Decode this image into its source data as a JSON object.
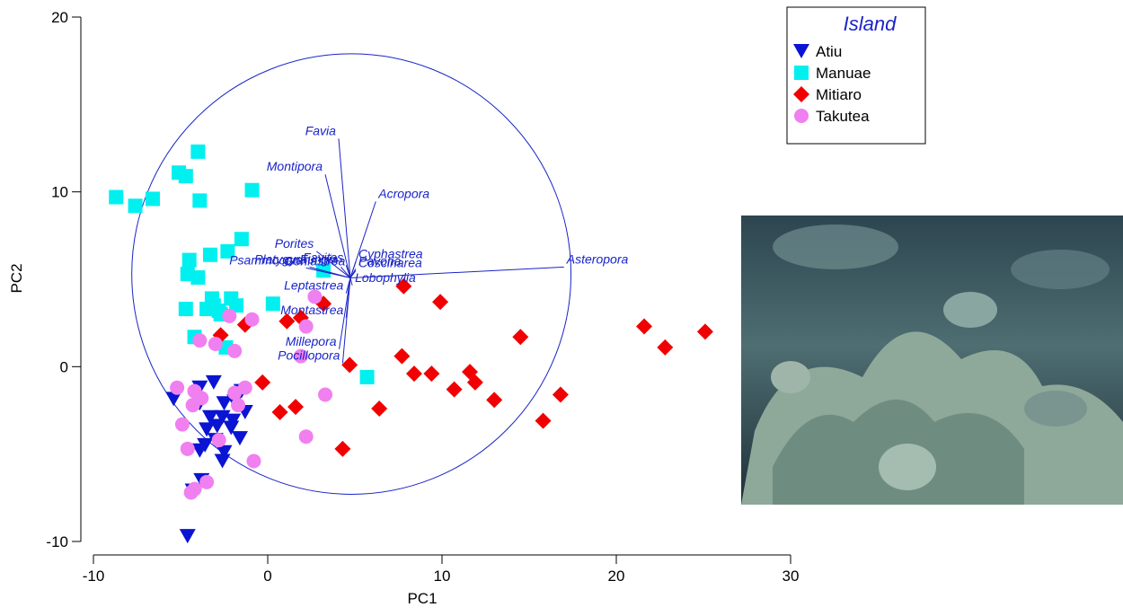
{
  "chart_data": {
    "type": "scatter",
    "x_label": "PC1",
    "y_label": "PC2",
    "xlim": [
      -10,
      30
    ],
    "ylim": [
      -10,
      20
    ],
    "xticks": [
      -10,
      0,
      10,
      20,
      30
    ],
    "yticks": [
      -10,
      0,
      10,
      20
    ],
    "legend_title": "Island",
    "legend_position": "upper right",
    "series": [
      {
        "name": "Atiu",
        "color": "#0a14d2",
        "marker": "triangle-down",
        "x": [
          -5.4,
          -3.9,
          -3.1,
          -1.5,
          -3.9,
          -3.3,
          -2.6,
          -2.0,
          -1.3,
          -3.5,
          -2.9,
          -2.1,
          -1.6,
          -3.6,
          -3.0,
          -2.5,
          -3.9,
          -2.6,
          -3.8,
          -4.3,
          -4.6,
          -2.5,
          -1.9
        ],
        "y": [
          -1.85,
          -1.2,
          -0.9,
          -1.4,
          -2.1,
          -2.9,
          -2.9,
          -3.1,
          -2.6,
          -3.6,
          -3.4,
          -3.5,
          -4.1,
          -4.5,
          -4.2,
          -4.9,
          -4.8,
          -5.4,
          -6.5,
          -7.1,
          -9.7,
          -2.1,
          -2.0
        ]
      },
      {
        "name": "Manuae",
        "color": "#00f0f0",
        "marker": "square",
        "x": [
          -8.7,
          -7.6,
          -6.6,
          -5.1,
          -4.7,
          -4.0,
          -3.9,
          -0.9,
          -1.5,
          -2.3,
          -3.3,
          -4.5,
          -4.6,
          -4.0,
          -3.2,
          -3.5,
          -2.8,
          -3.1,
          -2.7,
          -2.1,
          -1.8,
          -4.7,
          -4.2,
          -2.4,
          0.3,
          3.2,
          5.7
        ],
        "y": [
          9.7,
          9.2,
          9.6,
          11.1,
          10.9,
          12.3,
          9.5,
          10.1,
          7.3,
          6.6,
          6.4,
          6.1,
          5.3,
          5.1,
          3.9,
          3.3,
          3.2,
          3.5,
          3.0,
          3.9,
          3.5,
          3.3,
          1.7,
          1.1,
          3.6,
          5.5,
          -0.6
        ]
      },
      {
        "name": "Mitiaro",
        "color": "#f00000",
        "marker": "diamond",
        "x": [
          7.8,
          9.9,
          3.2,
          1.1,
          -1.3,
          -2.7,
          7.7,
          8.4,
          9.4,
          4.7,
          -0.3,
          1.6,
          0.7,
          6.4,
          4.3,
          10.7,
          11.6,
          11.9,
          13.0,
          14.5,
          15.8,
          16.8,
          21.6,
          22.8,
          25.1,
          1.9
        ],
        "y": [
          4.6,
          3.7,
          3.6,
          2.6,
          2.4,
          1.8,
          0.6,
          -0.4,
          -0.4,
          0.1,
          -0.9,
          -2.3,
          -2.6,
          -2.4,
          -4.7,
          -1.3,
          -0.3,
          -0.9,
          -1.9,
          1.7,
          -3.1,
          -1.6,
          2.3,
          1.1,
          2.0,
          2.8
        ]
      },
      {
        "name": "Takutea",
        "color": "#f080f0",
        "marker": "circle",
        "x": [
          2.7,
          -2.2,
          -0.9,
          2.2,
          -3.9,
          -3.0,
          -1.9,
          -5.2,
          -4.2,
          -1.3,
          -4.3,
          -1.9,
          -1.7,
          -3.8,
          3.3,
          -4.9,
          -2.8,
          2.2,
          -4.6,
          -0.8,
          -3.5,
          -4.4,
          -4.2,
          1.9
        ],
        "y": [
          4.0,
          2.9,
          2.7,
          2.3,
          1.5,
          1.3,
          0.9,
          -1.2,
          -1.4,
          -1.2,
          -2.2,
          -1.5,
          -2.2,
          -1.8,
          -1.6,
          -3.3,
          -4.2,
          -4.0,
          -4.7,
          -5.4,
          -6.6,
          -7.2,
          -7.0,
          0.6
        ]
      }
    ],
    "circle": {
      "x": 4.8,
      "y": 5.3,
      "radius": 12.6,
      "color": "#1a24c8"
    },
    "vectors": {
      "color": "#1a24c8",
      "origin": [
        4.74,
        5.08
      ],
      "names": [
        "Favia",
        "Montipora",
        "Acropora",
        "Asteropora",
        "Porites",
        "Platygyra",
        "Psammocora",
        "Favites",
        "Goniastrea",
        "Fungia",
        "Cyphastrea",
        "Pavona",
        "Coscinarea",
        "Lobophylia",
        "Leptastrea",
        "Montastrea",
        "Millepora",
        "Pocillopora"
      ],
      "x": [
        4.07,
        3.3,
        6.2,
        17.0,
        2.8,
        2.4,
        2.2,
        4.5,
        4.6,
        4.2,
        5.05,
        5.05,
        5.05,
        4.85,
        4.5,
        4.5,
        4.1,
        4.3
      ],
      "y": [
        13.05,
        11.0,
        9.45,
        5.7,
        6.6,
        5.7,
        5.65,
        5.8,
        5.6,
        5.7,
        6.0,
        5.6,
        5.5,
        4.65,
        4.2,
        2.8,
        1.0,
        0.2
      ]
    }
  }
}
